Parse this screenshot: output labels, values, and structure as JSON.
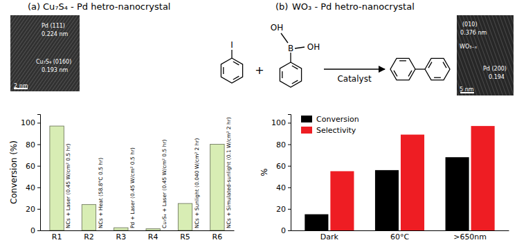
{
  "chart_data": [
    {
      "type": "bar",
      "title": "Cu₇S₄ - Pd hetro-nanocrystal",
      "annotations": {
        "panel": "(a)",
        "image": [
          "Pd (111)",
          "0.224 nm",
          "Cu₇S₄ (0160)",
          "0.193 nm",
          "2 nm"
        ],
        "bars": [
          "NCs + Laser (0.45 W/cm² 0.5 hr)",
          "NCs + Heat (58.8°C 0.5 hr)",
          "Pd + Laser (0.45 W/cm² 0.5 hr)",
          "Cu₇S₄ + Laser (0.45 W/cm² 0.5 hr)",
          "NCs + Sunlight (0.040 W/cm² 2 hr)",
          "NCs + Simulated-sunlight (0.1 W/cm² 2 hr)"
        ]
      },
      "y_label": "Conversion (%)",
      "categories": [
        "R1",
        "R2",
        "R3",
        "R4",
        "R5",
        "R6"
      ],
      "values": [
        97,
        24,
        2.5,
        1.5,
        25,
        80
      ],
      "color": "#d8edb4",
      "ylim": [
        0,
        108
      ],
      "yticks": [
        0,
        20,
        40,
        60,
        80,
        100
      ],
      "grid": false
    },
    {
      "type": "bar",
      "title": "WO₃ - Pd hetro-nanocrystal",
      "annotations": {
        "panel": "(b)",
        "image": [
          "(010)",
          "0.376 nm",
          "WO₃₋ₓ",
          "Pd (200)",
          "0.194",
          "5 nm"
        ]
      },
      "y_label": "%",
      "categories": [
        "Dark",
        "60°C",
        ">650nm"
      ],
      "series": [
        {
          "name": "Conversion",
          "color": "#000000",
          "values": [
            15,
            56,
            68
          ]
        },
        {
          "name": "Selectivity",
          "color": "#ee1d23",
          "values": [
            55,
            89,
            97
          ]
        }
      ],
      "ylim": [
        0,
        108
      ],
      "yticks": [
        0,
        20,
        40,
        60,
        80,
        100
      ],
      "legend": "top-left",
      "grid": false
    }
  ],
  "scheme": {
    "reactants": [
      {
        "atoms": [
          "I"
        ]
      },
      {
        "atoms": [
          "OH",
          "B",
          "OH"
        ]
      }
    ],
    "plus": "+",
    "arrow_label": "Catalyst"
  }
}
